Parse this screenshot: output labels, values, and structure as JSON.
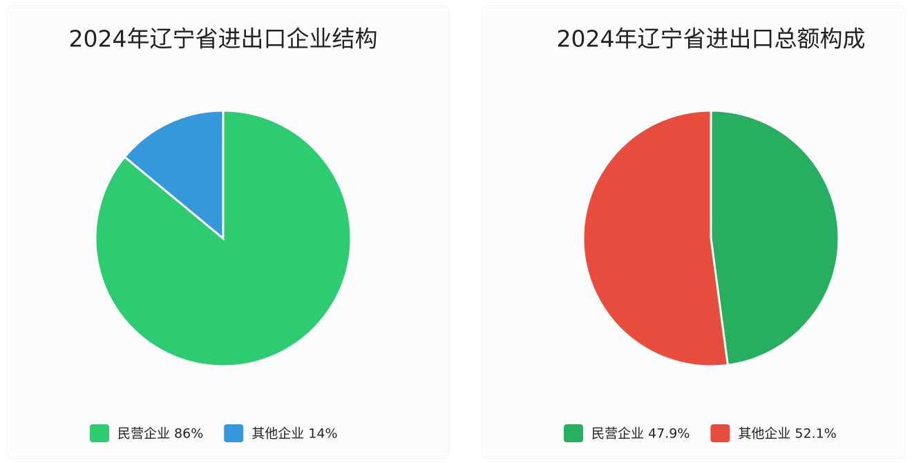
{
  "chart_data": [
    {
      "type": "pie",
      "title": "2024年辽宁省进出口企业结构",
      "categories": [
        "民营企业",
        "其他企业"
      ],
      "values": [
        86,
        14
      ],
      "value_labels": [
        "86%",
        "14%"
      ],
      "colors": [
        "#2ecc71",
        "#3498db"
      ]
    },
    {
      "type": "pie",
      "title": "2024年辽宁省进出口总额构成",
      "categories": [
        "民营企业",
        "其他企业"
      ],
      "values": [
        47.9,
        52.1
      ],
      "value_labels": [
        "47.9%",
        "52.1%"
      ],
      "colors": [
        "#27ae60",
        "#e74c3c"
      ]
    }
  ]
}
